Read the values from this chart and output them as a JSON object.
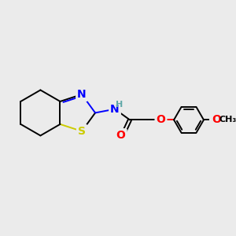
{
  "background_color": "#ebebeb",
  "atom_colors": {
    "C": "#000000",
    "N": "#0000ff",
    "O": "#ff0000",
    "S": "#cccc00",
    "H": "#5fa8a8"
  },
  "bond_lw": 1.4,
  "font_size_atoms": 10,
  "font_size_small": 8
}
